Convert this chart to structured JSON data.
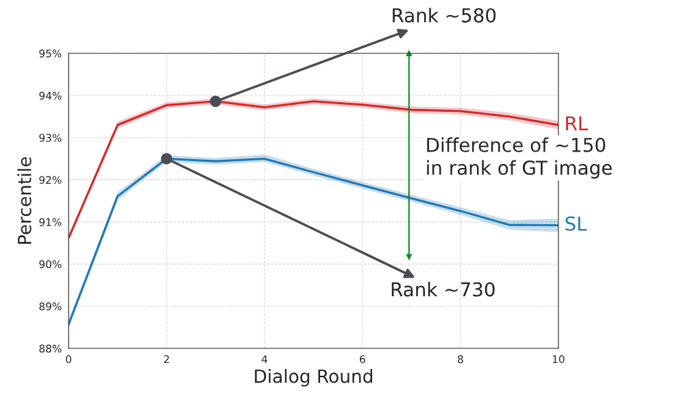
{
  "chart_data": {
    "type": "line",
    "xlabel": "Dialog Round",
    "ylabel": "Percentile",
    "x": [
      0,
      1,
      2,
      3,
      4,
      5,
      6,
      7,
      8,
      9,
      10
    ],
    "series": [
      {
        "name": "RL",
        "color": "#d62728",
        "values": [
          90.62,
          93.3,
          93.77,
          93.86,
          93.72,
          93.86,
          93.78,
          93.66,
          93.63,
          93.5,
          93.3
        ],
        "lower": [
          90.55,
          93.22,
          93.7,
          93.79,
          93.65,
          93.79,
          93.71,
          93.58,
          93.55,
          93.41,
          93.2
        ],
        "upper": [
          90.69,
          93.38,
          93.84,
          93.93,
          93.79,
          93.93,
          93.85,
          93.74,
          93.71,
          93.59,
          93.4
        ]
      },
      {
        "name": "SL",
        "color": "#1f77b4",
        "values": [
          88.57,
          91.61,
          92.5,
          92.44,
          92.5,
          92.18,
          91.87,
          91.56,
          91.26,
          90.93,
          90.92
        ],
        "lower": [
          88.48,
          91.52,
          92.42,
          92.36,
          92.42,
          92.1,
          91.79,
          91.48,
          91.17,
          90.82,
          90.76
        ],
        "upper": [
          88.66,
          91.7,
          92.58,
          92.52,
          92.6,
          92.26,
          91.95,
          91.64,
          91.35,
          91.04,
          91.08
        ]
      }
    ],
    "annotations": [
      {
        "text": "Rank ~580",
        "x": 3,
        "y": 93.86
      },
      {
        "text": "Rank ~730",
        "x": 2,
        "y": 92.5
      },
      "Difference of ~150\nin rank of GT image"
    ],
    "ref_lines": [
      {
        "axis": "x",
        "value": 6.95,
        "color": "#108a2a"
      }
    ],
    "xlim": [
      0,
      10
    ],
    "xticks": [
      0,
      2,
      4,
      6,
      8,
      10
    ],
    "ylim": [
      88,
      95
    ],
    "yticks": [
      {
        "value": 88,
        "label": "88%"
      },
      {
        "value": 89,
        "label": "89%"
      },
      {
        "value": 90,
        "label": "90%"
      },
      {
        "value": 91,
        "label": "91%"
      },
      {
        "value": 92,
        "label": "92%"
      },
      {
        "value": 93,
        "label": "93%"
      },
      {
        "value": 94,
        "label": "94%"
      },
      {
        "value": 95,
        "label": "95%"
      }
    ],
    "grid": true,
    "legend": false,
    "marker": "none",
    "line_style": "solid"
  }
}
